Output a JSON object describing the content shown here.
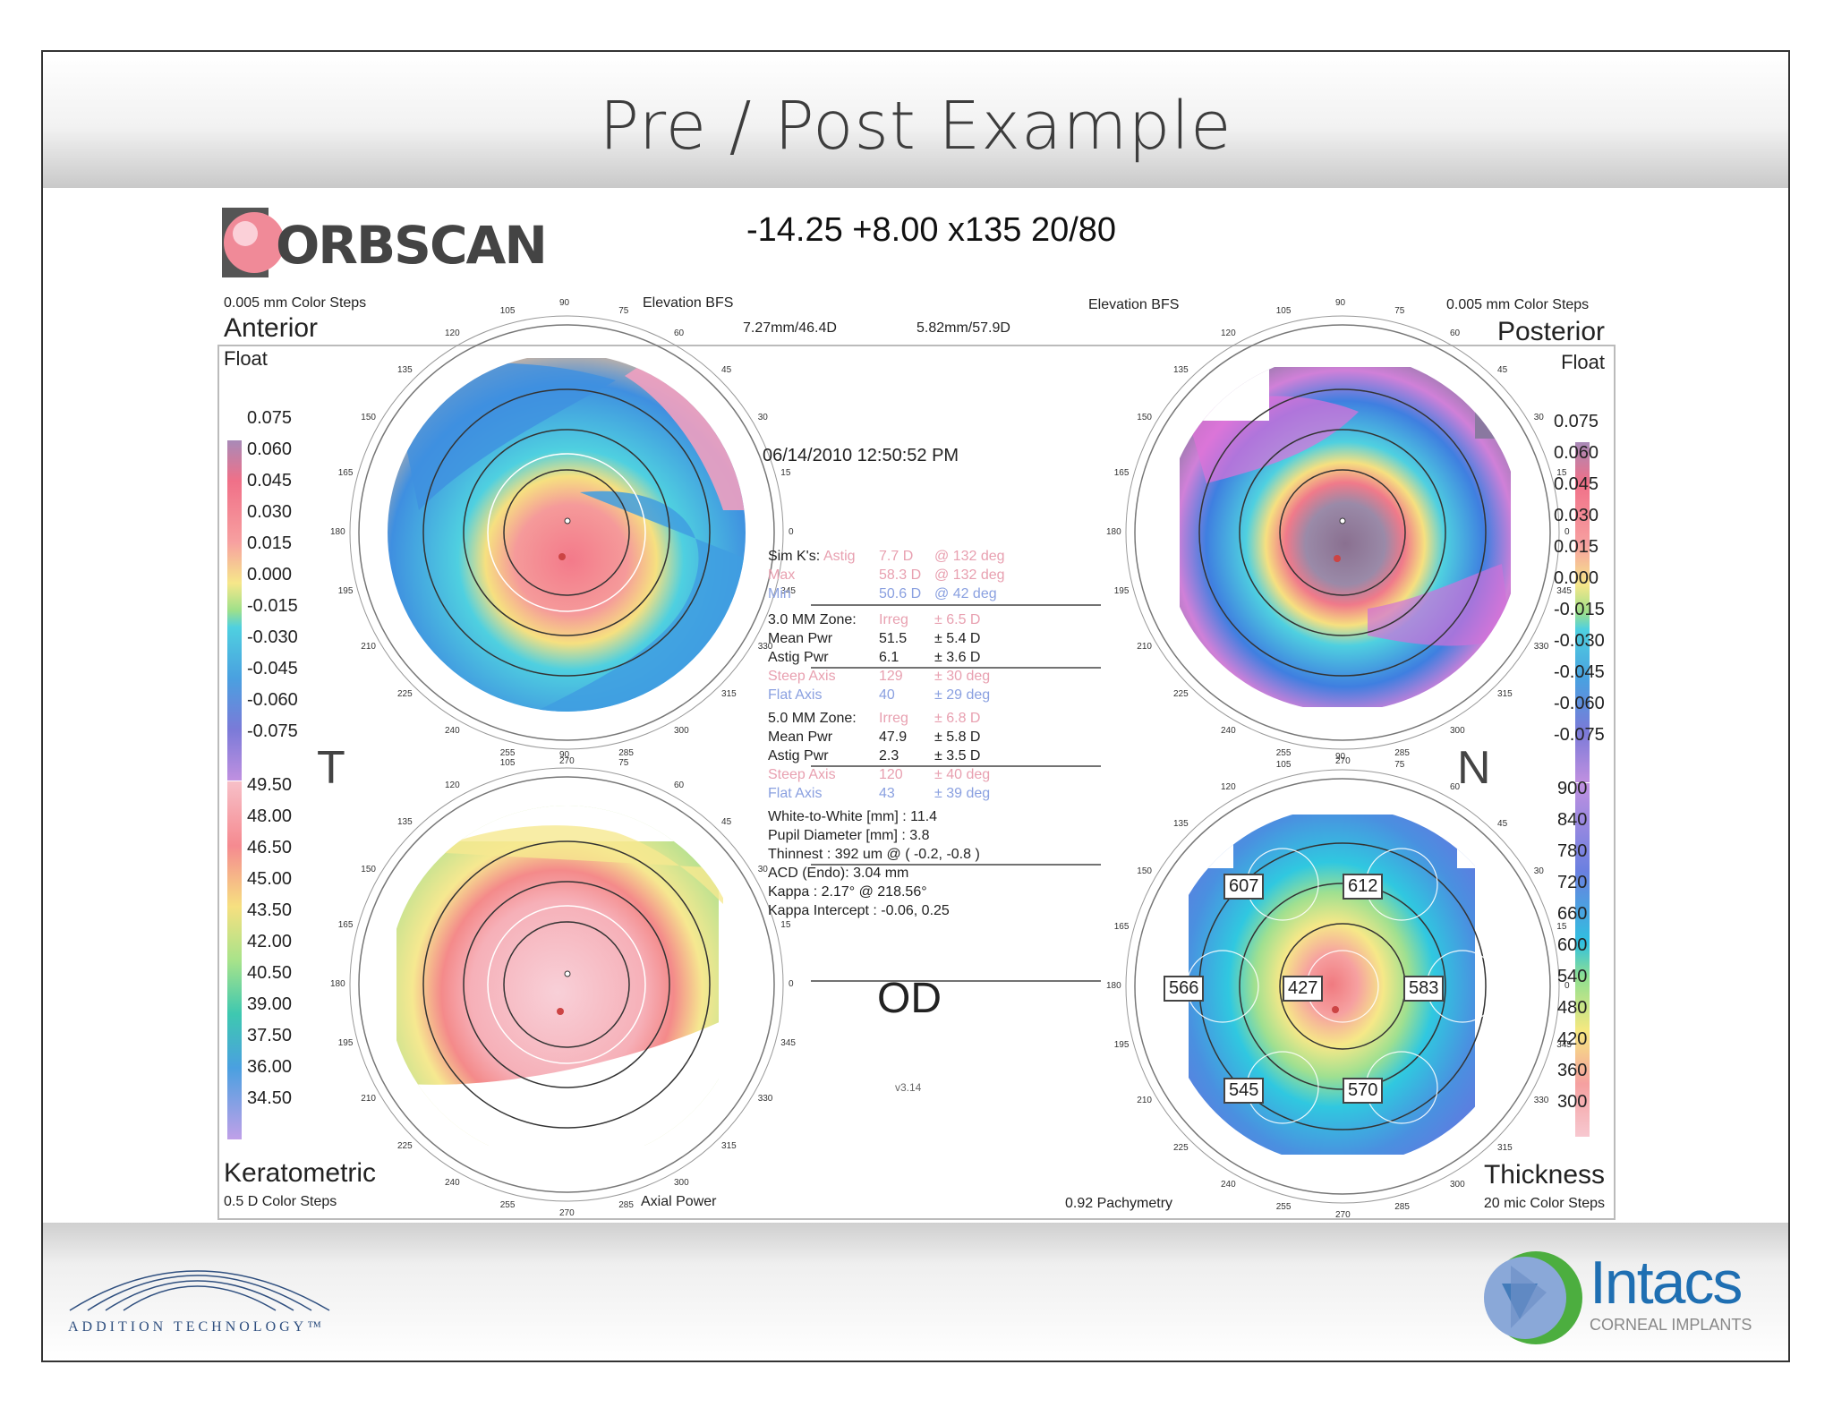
{
  "slide": {
    "title": "Pre / Post Example"
  },
  "report": {
    "brand": "ORBSCAN",
    "refraction": "-14.25 +8.00 x135  20/80",
    "date": "06/14/2010 12:50:52 PM",
    "eye": "OD",
    "version": "v3.14",
    "letters": {
      "left": "T",
      "right": "N"
    }
  },
  "maps": {
    "anterior": {
      "title": "Anterior",
      "subtitle": "Float",
      "steps": "0.005 mm Color Steps",
      "type": "Elevation BFS",
      "bfs": "7.27mm/46.4D"
    },
    "posterior": {
      "title": "Posterior",
      "subtitle": "Float",
      "steps": "0.005 mm Color Steps",
      "type": "Elevation BFS",
      "bfs": "5.82mm/57.9D"
    },
    "keratometric": {
      "title": "Keratometric",
      "steps": "0.5 D Color Steps",
      "type": "Axial Power"
    },
    "thickness": {
      "title": "Thickness",
      "steps": "20 mic Color Steps",
      "type": "0.92 Pachymetry",
      "values": {
        "c": "427",
        "ul": "607",
        "ur": "612",
        "l": "566",
        "r": "583",
        "ll": "545",
        "lr": "570"
      }
    }
  },
  "scales": {
    "elevation": [
      "0.075",
      "0.060",
      "0.045",
      "0.030",
      "0.015",
      "0.000",
      "-0.015",
      "-0.030",
      "-0.045",
      "-0.060",
      "-0.075"
    ],
    "keratometric": [
      "49.50",
      "48.00",
      "46.50",
      "45.00",
      "43.50",
      "42.00",
      "40.50",
      "39.00",
      "37.50",
      "36.00",
      "34.50"
    ],
    "thickness": [
      "900",
      "840",
      "780",
      "720",
      "660",
      "600",
      "540",
      "480",
      "420",
      "360",
      "300"
    ]
  },
  "sim_k": {
    "label": "Sim K's:",
    "astig": [
      "Astig",
      "7.7 D",
      "@ 132 deg"
    ],
    "max": [
      "Max",
      "58.3 D",
      "@ 132 deg"
    ],
    "min": [
      "Min",
      "50.6 D",
      "@ 42 deg"
    ]
  },
  "zone3": {
    "label": "3.0 MM Zone:",
    "irreg": [
      "Irreg",
      "± 6.5 D"
    ],
    "mean": [
      "Mean Pwr",
      "51.5",
      "± 5.4 D"
    ],
    "astig": [
      "Astig Pwr",
      "6.1",
      "± 3.6 D"
    ],
    "steep": [
      "Steep Axis",
      "129",
      "± 30 deg"
    ],
    "flat": [
      "Flat Axis",
      "40",
      "± 29 deg"
    ]
  },
  "zone5": {
    "label": "5.0 MM Zone:",
    "irreg": [
      "Irreg",
      "± 6.8 D"
    ],
    "mean": [
      "Mean Pwr",
      "47.9",
      "± 5.8 D"
    ],
    "astig": [
      "Astig Pwr",
      "2.3",
      "± 3.5 D"
    ],
    "steep": [
      "Steep Axis",
      "120",
      "± 40 deg"
    ],
    "flat": [
      "Flat Axis",
      "43",
      "± 39 deg"
    ]
  },
  "measurements": [
    "White-to-White [mm] : 11.4",
    "Pupil Diameter [mm] :  3.8",
    "Thinnest : 392 um @ ( -0.2, -0.8 )",
    "ACD (Endo): 3.04 mm",
    "Kappa : 2.17° @ 218.56°",
    "Kappa Intercept : -0.06, 0.25"
  ],
  "axis_labels": [
    "90",
    "75",
    "60",
    "45",
    "30",
    "15",
    "0",
    "345",
    "330",
    "315",
    "300",
    "285",
    "270",
    "255",
    "240",
    "225",
    "210",
    "195",
    "180",
    "165",
    "150",
    "135",
    "120",
    "105"
  ],
  "footer": {
    "left_logo": "ADDITION TECHNOLOGY™",
    "right_logo": "Intacs",
    "right_sub": "CORNEAL IMPLANTS"
  },
  "colors": {
    "accent_red": "#e05060",
    "intacs_blue": "#1f6fb2",
    "intacs_green": "#4cae3f",
    "pink_text": "#e8a0b0",
    "blue_text": "#8aa0e0"
  }
}
